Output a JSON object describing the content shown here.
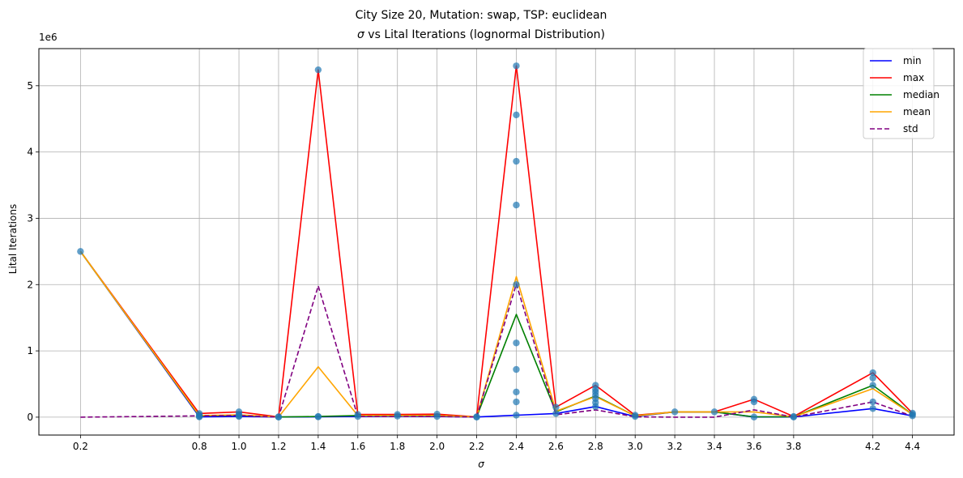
{
  "chart_data": {
    "type": "line",
    "title_line1": "City Size 20, Mutation: swap, TSP: euclidean",
    "title_line2_symbol": "σ",
    "title_line2_rest": " vs Lital Iterations (lognormal Distribution)",
    "xlabel": "σ",
    "ylabel": "Lital Iterations",
    "y_offset_label": "1e6",
    "xlim": [
      -0.01,
      4.61
    ],
    "ylim": [
      -270000,
      5560000
    ],
    "x_ticks": [
      0.2,
      0.8,
      1.0,
      1.2,
      1.4,
      1.6,
      1.8,
      2.0,
      2.2,
      2.4,
      2.6,
      2.8,
      3.0,
      3.2,
      3.4,
      3.6,
      3.8,
      4.2,
      4.4
    ],
    "x_tick_labels": [
      "0.2",
      "0.8",
      "1.0",
      "1.2",
      "1.4",
      "1.6",
      "1.8",
      "2.0",
      "2.2",
      "2.4",
      "2.6",
      "2.8",
      "3.0",
      "3.2",
      "3.4",
      "3.6",
      "3.8",
      "4.2",
      "4.4"
    ],
    "y_ticks": [
      0,
      1000000,
      2000000,
      3000000,
      4000000,
      5000000
    ],
    "y_tick_labels": [
      "0",
      "1",
      "2",
      "3",
      "4",
      "5"
    ],
    "grid": true,
    "legend_position": "top-right",
    "series": [
      {
        "name": "min",
        "color": "#0000ff",
        "dash": "solid",
        "values": [
          2500000,
          5000,
          10000,
          2000,
          5000,
          10000,
          15000,
          10000,
          2000,
          30000,
          55000,
          160000,
          10000,
          80000,
          80000,
          2000,
          2000,
          130000,
          20000
        ]
      },
      {
        "name": "max",
        "color": "#ff0000",
        "dash": "solid",
        "values": [
          2500000,
          55000,
          80000,
          5000,
          5240000,
          40000,
          40000,
          45000,
          5000,
          5300000,
          150000,
          480000,
          30000,
          80000,
          80000,
          270000,
          10000,
          670000,
          60000
        ]
      },
      {
        "name": "median",
        "color": "#008000",
        "dash": "solid",
        "values": [
          2500000,
          20000,
          30000,
          3000,
          10000,
          25000,
          25000,
          25000,
          3000,
          1550000,
          80000,
          320000,
          20000,
          80000,
          80000,
          5000,
          5000,
          480000,
          40000
        ]
      },
      {
        "name": "mean",
        "color": "#ffa500",
        "dash": "solid",
        "values": [
          2500000,
          25000,
          35000,
          3000,
          760000,
          25000,
          25000,
          25000,
          3000,
          2120000,
          90000,
          310000,
          20000,
          80000,
          80000,
          80000,
          5000,
          430000,
          40000
        ]
      },
      {
        "name": "std",
        "color": "#800080",
        "dash": "dashed",
        "values": [
          0,
          20000,
          25000,
          1000,
          1980000,
          10000,
          10000,
          10000,
          1000,
          2010000,
          35000,
          110000,
          5000,
          0,
          0,
          110000,
          3000,
          230000,
          15000
        ]
      }
    ],
    "scatter_color": "#1f77b4",
    "scatter_points": [
      [
        0.2,
        2500000
      ],
      [
        0.8,
        10000
      ],
      [
        0.8,
        30000
      ],
      [
        0.8,
        55000
      ],
      [
        0.8,
        5000
      ],
      [
        1.0,
        10000
      ],
      [
        1.0,
        40000
      ],
      [
        1.0,
        80000
      ],
      [
        1.0,
        20000
      ],
      [
        1.2,
        2000
      ],
      [
        1.2,
        5000
      ],
      [
        1.4,
        5000
      ],
      [
        1.4,
        10000
      ],
      [
        1.4,
        5240000
      ],
      [
        1.6,
        10000
      ],
      [
        1.6,
        40000
      ],
      [
        1.8,
        15000
      ],
      [
        1.8,
        40000
      ],
      [
        2.0,
        10000
      ],
      [
        2.0,
        45000
      ],
      [
        2.2,
        2000
      ],
      [
        2.2,
        5000
      ],
      [
        2.4,
        30000
      ],
      [
        2.4,
        230000
      ],
      [
        2.4,
        380000
      ],
      [
        2.4,
        720000
      ],
      [
        2.4,
        1120000
      ],
      [
        2.4,
        2000000
      ],
      [
        2.4,
        3200000
      ],
      [
        2.4,
        3860000
      ],
      [
        2.4,
        4560000
      ],
      [
        2.4,
        5300000
      ],
      [
        2.6,
        55000
      ],
      [
        2.6,
        150000
      ],
      [
        2.8,
        160000
      ],
      [
        2.8,
        220000
      ],
      [
        2.8,
        280000
      ],
      [
        2.8,
        330000
      ],
      [
        2.8,
        380000
      ],
      [
        2.8,
        420000
      ],
      [
        2.8,
        480000
      ],
      [
        3.0,
        10000
      ],
      [
        3.0,
        30000
      ],
      [
        3.2,
        80000
      ],
      [
        3.4,
        80000
      ],
      [
        3.6,
        2000
      ],
      [
        3.6,
        230000
      ],
      [
        3.6,
        270000
      ],
      [
        3.8,
        2000
      ],
      [
        3.8,
        10000
      ],
      [
        4.2,
        130000
      ],
      [
        4.2,
        230000
      ],
      [
        4.2,
        480000
      ],
      [
        4.2,
        590000
      ],
      [
        4.2,
        670000
      ],
      [
        4.4,
        20000
      ],
      [
        4.4,
        40000
      ],
      [
        4.4,
        60000
      ]
    ]
  }
}
